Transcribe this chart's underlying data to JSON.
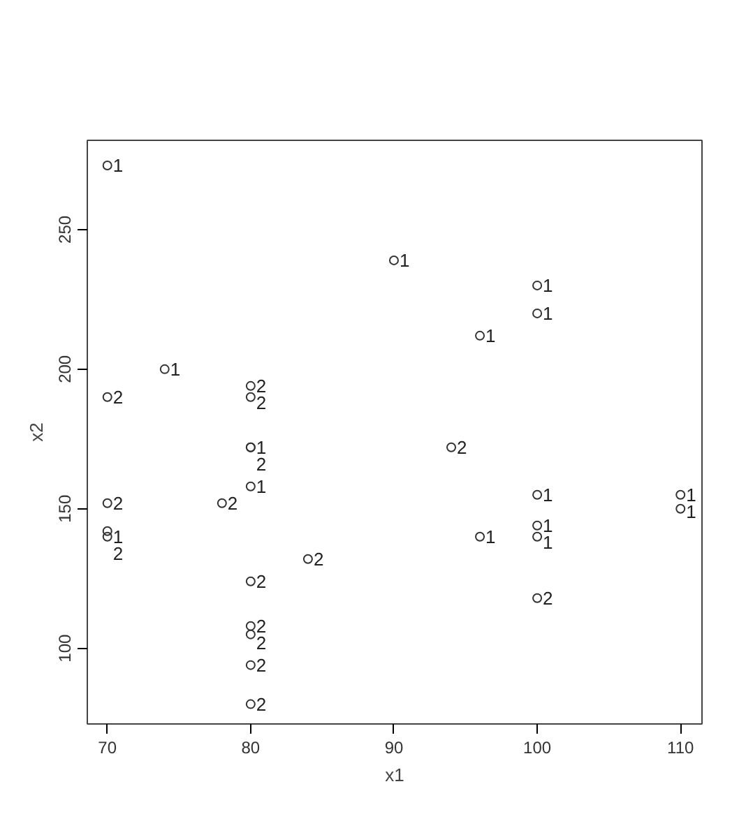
{
  "chart_data": {
    "type": "scatter",
    "xlabel": "x1",
    "ylabel": "x2",
    "xlim": [
      68.6,
      111.5
    ],
    "ylim": [
      72.9,
      282
    ],
    "xticks": [
      70,
      80,
      90,
      100,
      110
    ],
    "yticks": [
      100,
      150,
      200,
      250
    ],
    "grid": false,
    "legend": false,
    "marker": "circle",
    "series": [
      {
        "name": "1",
        "color": "#333333",
        "x": [
          70,
          90,
          100,
          100,
          96,
          74,
          80,
          80,
          70,
          100,
          100,
          100,
          96,
          110,
          110
        ],
        "values": [
          273,
          239,
          230,
          220,
          212,
          200,
          172,
          158,
          140,
          155,
          144,
          140,
          140,
          155,
          150
        ]
      },
      {
        "name": "2",
        "color": "#333333",
        "x": [
          70,
          80,
          80,
          80,
          94,
          70,
          78,
          70,
          84,
          80,
          100,
          80,
          80,
          80,
          80
        ],
        "values": [
          190,
          194,
          190,
          172,
          172,
          152,
          152,
          142,
          132,
          124,
          118,
          108,
          105,
          94,
          80
        ]
      }
    ]
  }
}
